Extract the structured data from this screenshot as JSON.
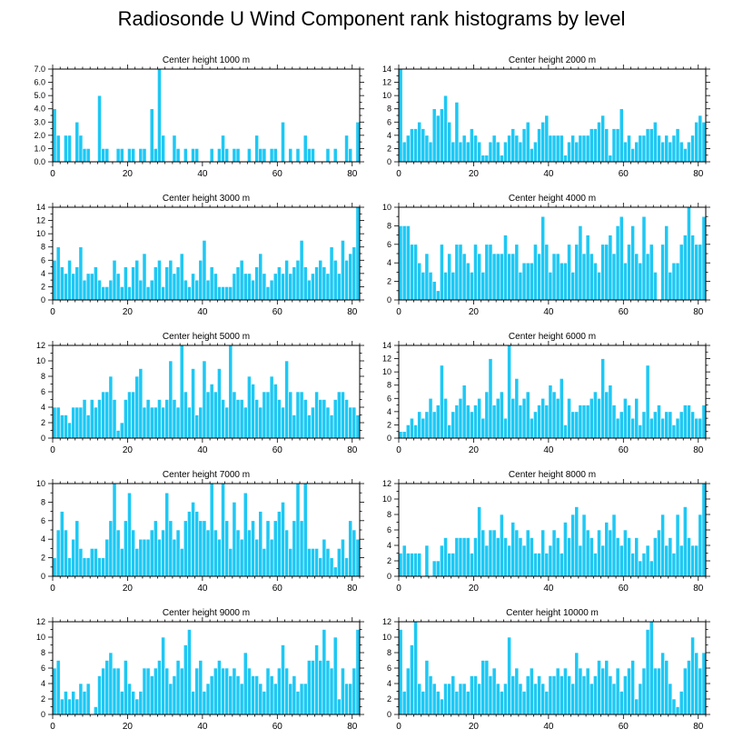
{
  "figure": {
    "title": "Radiosonde U Wind Component rank histograms by level"
  },
  "colors": {
    "bar": "#1ec8f4",
    "axis": "#000000",
    "bar_edge": "#ffffff"
  },
  "chart_data": [
    {
      "type": "bar",
      "title": "Center height 1000 m",
      "xlim": [
        0,
        82
      ],
      "xticks": [
        0,
        20,
        40,
        60,
        80
      ],
      "ylim": [
        0,
        7
      ],
      "yticks": [
        0,
        1,
        2,
        3,
        4,
        5,
        6,
        7
      ],
      "ytick_labels": [
        "0.0",
        "1.0",
        "2.0",
        "3.0",
        "4.0",
        "5.0",
        "6.0",
        "7.0"
      ],
      "values": [
        4,
        2,
        0,
        2,
        2,
        0,
        3,
        2,
        1,
        1,
        0,
        0,
        5,
        1,
        1,
        0,
        0,
        1,
        1,
        0,
        1,
        1,
        0,
        1,
        1,
        0,
        4,
        1,
        7,
        2,
        0,
        0,
        2,
        1,
        0,
        1,
        0,
        1,
        1,
        0,
        0,
        0,
        1,
        0,
        1,
        2,
        1,
        0,
        1,
        1,
        0,
        0,
        1,
        0,
        2,
        1,
        1,
        0,
        1,
        1,
        0,
        3,
        0,
        1,
        0,
        1,
        0,
        2,
        1,
        1,
        0,
        0,
        0,
        1,
        0,
        1,
        0,
        0,
        2,
        1,
        0,
        3,
        0
      ]
    },
    {
      "type": "bar",
      "title": "Center height 2000 m",
      "xlim": [
        0,
        82
      ],
      "xticks": [
        0,
        20,
        40,
        60,
        80
      ],
      "ylim": [
        0,
        14
      ],
      "yticks": [
        0,
        2,
        4,
        6,
        8,
        10,
        12,
        14
      ],
      "ytick_labels": [
        "0",
        "2",
        "4",
        "6",
        "8",
        "10",
        "12",
        "14"
      ],
      "values": [
        14,
        3,
        4,
        5,
        5,
        6,
        5,
        4,
        3,
        8,
        7,
        8,
        10,
        6,
        3,
        9,
        3,
        4,
        3,
        5,
        4,
        3,
        1,
        1,
        3,
        4,
        3,
        1,
        3,
        4,
        5,
        4,
        3,
        5,
        6,
        2,
        3,
        5,
        6,
        7,
        4,
        4,
        4,
        4,
        1,
        3,
        4,
        3,
        4,
        4,
        4,
        5,
        5,
        6,
        7,
        5,
        1,
        5,
        5,
        8,
        3,
        4,
        2,
        3,
        4,
        4,
        5,
        5,
        6,
        4,
        3,
        4,
        3,
        4,
        5,
        3,
        2,
        3,
        4,
        6,
        7,
        6
      ]
    },
    {
      "type": "bar",
      "title": "Center height 3000 m",
      "xlim": [
        0,
        82
      ],
      "xticks": [
        0,
        20,
        40,
        60,
        80
      ],
      "ylim": [
        0,
        14
      ],
      "yticks": [
        0,
        2,
        4,
        6,
        8,
        10,
        12,
        14
      ],
      "ytick_labels": [
        "0",
        "2",
        "4",
        "6",
        "8",
        "10",
        "12",
        "14"
      ],
      "values": [
        6,
        8,
        5,
        4,
        6,
        4,
        5,
        8,
        3,
        4,
        4,
        5,
        3,
        2,
        2,
        3,
        6,
        4,
        2,
        5,
        2,
        5,
        6,
        3,
        7,
        2,
        3,
        5,
        6,
        2,
        5,
        6,
        4,
        5,
        7,
        3,
        2,
        4,
        3,
        6,
        9,
        3,
        5,
        4,
        2,
        2,
        2,
        2,
        4,
        5,
        6,
        4,
        4,
        3,
        5,
        7,
        4,
        2,
        3,
        4,
        5,
        4,
        6,
        4,
        5,
        6,
        9,
        5,
        3,
        4,
        5,
        6,
        5,
        4,
        8,
        6,
        4,
        9,
        6,
        7,
        8,
        14
      ]
    },
    {
      "type": "bar",
      "title": "Center height 4000 m",
      "xlim": [
        0,
        82
      ],
      "xticks": [
        0,
        20,
        40,
        60,
        80
      ],
      "ylim": [
        0,
        10
      ],
      "yticks": [
        0,
        2,
        4,
        6,
        8,
        10
      ],
      "ytick_labels": [
        "0",
        "2",
        "4",
        "6",
        "8",
        "10"
      ],
      "values": [
        8,
        8,
        8,
        6,
        6,
        4,
        3,
        5,
        3,
        2,
        1,
        6,
        3,
        5,
        3,
        6,
        6,
        5,
        4,
        3,
        6,
        5,
        3,
        6,
        6,
        5,
        5,
        5,
        7,
        5,
        5,
        6,
        3,
        4,
        4,
        4,
        6,
        5,
        9,
        6,
        3,
        5,
        5,
        4,
        4,
        6,
        3,
        6,
        8,
        5,
        7,
        5,
        4,
        3,
        6,
        6,
        7,
        5,
        8,
        9,
        4,
        6,
        8,
        5,
        4,
        9,
        5,
        6,
        3,
        0,
        6,
        8,
        3,
        4,
        4,
        6,
        7,
        10,
        7,
        6,
        6,
        9
      ]
    },
    {
      "type": "bar",
      "title": "Center height 5000 m",
      "xlim": [
        0,
        82
      ],
      "xticks": [
        0,
        20,
        40,
        60,
        80
      ],
      "ylim": [
        0,
        12
      ],
      "yticks": [
        0,
        2,
        4,
        6,
        8,
        10,
        12
      ],
      "ytick_labels": [
        "0",
        "2",
        "4",
        "6",
        "8",
        "10",
        "12"
      ],
      "values": [
        4,
        4,
        3,
        3,
        2,
        4,
        4,
        4,
        5,
        3,
        5,
        4,
        5,
        6,
        6,
        8,
        5,
        1,
        2,
        5,
        6,
        6,
        8,
        9,
        4,
        5,
        4,
        4,
        5,
        4,
        5,
        10,
        5,
        4,
        12,
        6,
        4,
        9,
        3,
        4,
        10,
        6,
        7,
        6,
        9,
        5,
        4,
        12,
        6,
        5,
        5,
        4,
        8,
        7,
        5,
        4,
        6,
        6,
        8,
        7,
        5,
        4,
        10,
        6,
        3,
        6,
        6,
        5,
        3,
        4,
        6,
        5,
        5,
        4,
        3,
        5,
        6,
        6,
        5,
        4,
        4,
        3
      ]
    },
    {
      "type": "bar",
      "title": "Center height 6000 m",
      "xlim": [
        0,
        82
      ],
      "xticks": [
        0,
        20,
        40,
        60,
        80
      ],
      "ylim": [
        0,
        14
      ],
      "yticks": [
        0,
        2,
        4,
        6,
        8,
        10,
        12,
        14
      ],
      "ytick_labels": [
        "0",
        "2",
        "4",
        "6",
        "8",
        "10",
        "12",
        "14"
      ],
      "values": [
        1,
        1,
        2,
        3,
        2,
        4,
        3,
        4,
        6,
        4,
        5,
        11,
        6,
        2,
        4,
        5,
        6,
        8,
        5,
        4,
        5,
        6,
        3,
        7,
        12,
        5,
        6,
        7,
        3,
        14,
        6,
        9,
        5,
        6,
        7,
        3,
        4,
        5,
        6,
        5,
        8,
        7,
        6,
        9,
        2,
        6,
        4,
        4,
        5,
        5,
        5,
        6,
        7,
        6,
        12,
        7,
        8,
        5,
        3,
        4,
        6,
        5,
        3,
        6,
        2,
        4,
        11,
        3,
        4,
        5,
        3,
        4,
        4,
        2,
        3,
        4,
        5,
        5,
        4,
        3,
        3,
        5
      ]
    },
    {
      "type": "bar",
      "title": "Center height 7000 m",
      "xlim": [
        0,
        82
      ],
      "xticks": [
        0,
        20,
        40,
        60,
        80
      ],
      "ylim": [
        0,
        10
      ],
      "yticks": [
        0,
        2,
        4,
        6,
        8,
        10
      ],
      "ytick_labels": [
        "0",
        "2",
        "4",
        "6",
        "8",
        "10"
      ],
      "values": [
        2,
        5,
        7,
        5,
        2,
        4,
        6,
        3,
        2,
        2,
        3,
        3,
        2,
        2,
        4,
        6,
        10,
        5,
        3,
        6,
        9,
        5,
        3,
        4,
        4,
        4,
        5,
        6,
        4,
        5,
        9,
        6,
        4,
        5,
        3,
        6,
        7,
        8,
        7,
        6,
        6,
        5,
        10,
        5,
        4,
        10,
        6,
        3,
        8,
        5,
        4,
        9,
        5,
        6,
        4,
        7,
        3,
        6,
        4,
        6,
        7,
        8,
        5,
        3,
        6,
        10,
        6,
        10,
        3,
        3,
        3,
        2,
        4,
        3,
        2,
        1,
        3,
        4,
        2,
        6,
        5,
        4
      ]
    },
    {
      "type": "bar",
      "title": "Center height 8000 m",
      "xlim": [
        0,
        82
      ],
      "xticks": [
        0,
        20,
        40,
        60,
        80
      ],
      "ylim": [
        0,
        12
      ],
      "yticks": [
        0,
        2,
        4,
        6,
        8,
        10,
        12
      ],
      "ytick_labels": [
        "0",
        "2",
        "4",
        "6",
        "8",
        "10",
        "12"
      ],
      "values": [
        3,
        4,
        3,
        3,
        3,
        3,
        0,
        4,
        0,
        2,
        2,
        4,
        5,
        3,
        3,
        5,
        5,
        5,
        5,
        3,
        5,
        9,
        6,
        4,
        6,
        6,
        5,
        8,
        5,
        4,
        7,
        6,
        5,
        4,
        6,
        5,
        3,
        3,
        6,
        3,
        4,
        6,
        5,
        3,
        7,
        5,
        8,
        9,
        4,
        8,
        6,
        5,
        3,
        6,
        4,
        7,
        6,
        8,
        5,
        4,
        6,
        5,
        3,
        5,
        2,
        3,
        4,
        2,
        5,
        6,
        8,
        4,
        5,
        3,
        8,
        4,
        9,
        5,
        4,
        4,
        8,
        12
      ]
    },
    {
      "type": "bar",
      "title": "Center height 9000 m",
      "xlim": [
        0,
        82
      ],
      "xticks": [
        0,
        20,
        40,
        60,
        80
      ],
      "ylim": [
        0,
        12
      ],
      "yticks": [
        0,
        2,
        4,
        6,
        8,
        10,
        12
      ],
      "ytick_labels": [
        "0",
        "2",
        "4",
        "6",
        "8",
        "10",
        "12"
      ],
      "values": [
        6,
        7,
        2,
        3,
        2,
        3,
        2,
        4,
        3,
        4,
        0,
        1,
        5,
        6,
        7,
        8,
        6,
        6,
        3,
        7,
        4,
        3,
        2,
        3,
        6,
        6,
        5,
        6,
        7,
        10,
        6,
        4,
        5,
        7,
        6,
        9,
        11,
        3,
        6,
        7,
        3,
        4,
        5,
        6,
        7,
        6,
        6,
        5,
        6,
        5,
        4,
        8,
        6,
        5,
        5,
        4,
        3,
        6,
        5,
        4,
        6,
        9,
        6,
        4,
        5,
        3,
        4,
        4,
        7,
        7,
        9,
        7,
        11,
        7,
        6,
        10,
        2,
        6,
        4,
        4,
        6,
        11
      ]
    },
    {
      "type": "bar",
      "title": "Center height 10000 m",
      "xlim": [
        0,
        82
      ],
      "xticks": [
        0,
        20,
        40,
        60,
        80
      ],
      "ylim": [
        0,
        12
      ],
      "yticks": [
        0,
        2,
        4,
        6,
        8,
        10,
        12
      ],
      "ytick_labels": [
        "0",
        "2",
        "4",
        "6",
        "8",
        "10",
        "12"
      ],
      "values": [
        11,
        3,
        6,
        9,
        12,
        4,
        3,
        7,
        5,
        4,
        3,
        2,
        4,
        4,
        5,
        3,
        4,
        4,
        3,
        5,
        5,
        4,
        7,
        7,
        5,
        6,
        4,
        3,
        4,
        10,
        5,
        6,
        4,
        3,
        5,
        6,
        4,
        5,
        4,
        3,
        5,
        5,
        6,
        5,
        6,
        5,
        4,
        8,
        6,
        5,
        6,
        4,
        5,
        7,
        6,
        7,
        5,
        4,
        6,
        3,
        5,
        6,
        7,
        2,
        4,
        6,
        11,
        12,
        6,
        6,
        8,
        7,
        4,
        2,
        1,
        3,
        6,
        7,
        10,
        8,
        6,
        8
      ]
    }
  ]
}
